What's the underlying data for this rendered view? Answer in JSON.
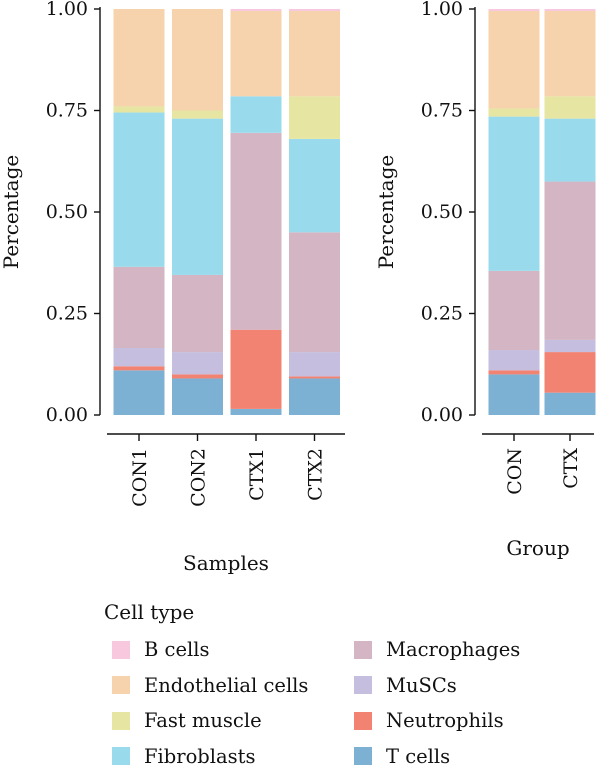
{
  "chart_data": [
    {
      "type": "bar",
      "stacked": true,
      "xlabel": "Samples",
      "ylabel": "Percentage",
      "ylim": [
        0,
        1
      ],
      "yticks": [
        "0.00",
        "0.25",
        "0.50",
        "0.75",
        "1.00"
      ],
      "categories": [
        "CON1",
        "CON2",
        "CTX1",
        "CTX2"
      ],
      "series": [
        {
          "name": "T cells",
          "values": [
            0.11,
            0.09,
            0.015,
            0.09
          ]
        },
        {
          "name": "Neutrophils",
          "values": [
            0.01,
            0.01,
            0.195,
            0.005
          ]
        },
        {
          "name": "MuSCs",
          "values": [
            0.045,
            0.055,
            0.0,
            0.06
          ]
        },
        {
          "name": "Macrophages",
          "values": [
            0.2,
            0.19,
            0.485,
            0.295
          ]
        },
        {
          "name": "Fibroblasts",
          "values": [
            0.38,
            0.385,
            0.09,
            0.23
          ]
        },
        {
          "name": "Fast muscle",
          "values": [
            0.015,
            0.02,
            0.0,
            0.105
          ]
        },
        {
          "name": "Endothelial cells",
          "values": [
            0.24,
            0.25,
            0.21,
            0.21
          ]
        },
        {
          "name": "B cells",
          "values": [
            0.0,
            0.0,
            0.005,
            0.005
          ]
        }
      ]
    },
    {
      "type": "bar",
      "stacked": true,
      "xlabel": "Group",
      "ylabel": "Percentage",
      "ylim": [
        0,
        1
      ],
      "yticks": [
        "0.00",
        "0.25",
        "0.50",
        "0.75",
        "1.00"
      ],
      "categories": [
        "CON",
        "CTX"
      ],
      "series": [
        {
          "name": "T cells",
          "values": [
            0.1,
            0.055
          ]
        },
        {
          "name": "Neutrophils",
          "values": [
            0.01,
            0.1
          ]
        },
        {
          "name": "MuSCs",
          "values": [
            0.05,
            0.03
          ]
        },
        {
          "name": "Macrophages",
          "values": [
            0.195,
            0.39
          ]
        },
        {
          "name": "Fibroblasts",
          "values": [
            0.38,
            0.155
          ]
        },
        {
          "name": "Fast muscle",
          "values": [
            0.02,
            0.055
          ]
        },
        {
          "name": "Endothelial cells",
          "values": [
            0.24,
            0.21
          ]
        },
        {
          "name": "B cells",
          "values": [
            0.005,
            0.005
          ]
        }
      ]
    }
  ],
  "legend": {
    "title": "Cell type",
    "items": [
      {
        "name": "B cells",
        "color": "#f8c8de"
      },
      {
        "name": "Endothelial cells",
        "color": "#f7d3ad"
      },
      {
        "name": "Fast muscle",
        "color": "#e6e6a2"
      },
      {
        "name": "Fibroblasts",
        "color": "#99dbec"
      },
      {
        "name": "Macrophages",
        "color": "#d3b5c3"
      },
      {
        "name": "MuSCs",
        "color": "#c6bedf"
      },
      {
        "name": "Neutrophils",
        "color": "#f28272"
      },
      {
        "name": "T cells",
        "color": "#7db1d4"
      }
    ]
  }
}
